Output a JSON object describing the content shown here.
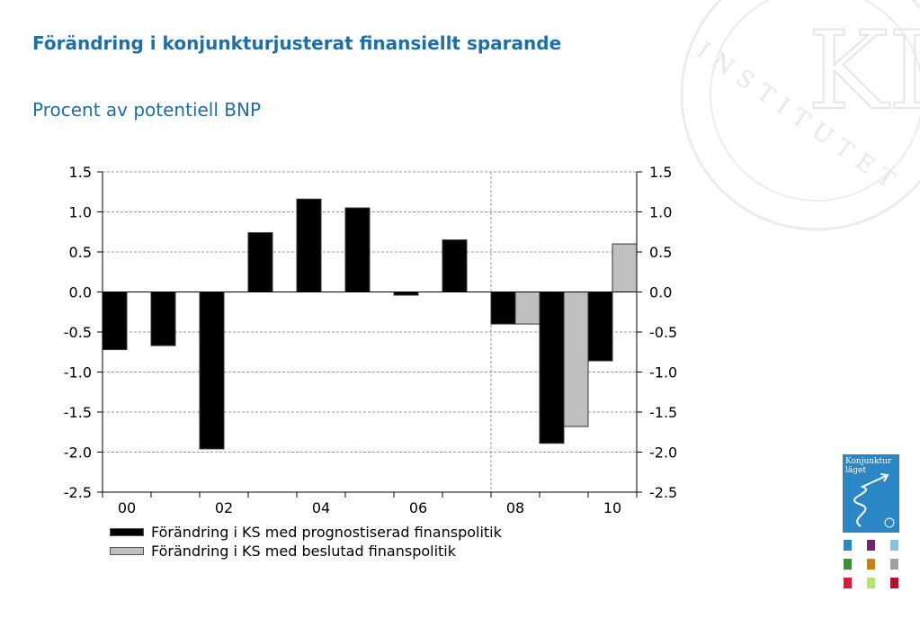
{
  "title": "Förändring i konjunkturjusterat finansiellt sparande",
  "subtitle": "Procent av potentiell BNP",
  "cover": {
    "title_line1": "Konjunktur",
    "title_line2": "läget"
  },
  "watermark": {
    "letters": "KI",
    "ring_text": "INSTITUTET"
  },
  "colors": {
    "title": "#1f6ea8",
    "series_black": "#000000",
    "series_gray": "#bfbfbf",
    "grid": "#9a9a9a"
  },
  "chart_data": {
    "type": "bar",
    "title": "Förändring i konjunkturjusterat finansiellt sparande",
    "subtitle": "Procent av potentiell BNP",
    "xlabel": "",
    "ylabel": "",
    "ylim": [
      -2.5,
      1.5
    ],
    "yticks": [
      "1.5",
      "1.0",
      "0.5",
      "0.0",
      "-0.5",
      "-1.0",
      "-1.5",
      "-2.0",
      "-2.5"
    ],
    "x_tick_labels": [
      "00",
      "02",
      "04",
      "06",
      "08",
      "10"
    ],
    "categories": [
      "2000",
      "2001",
      "2002",
      "2003",
      "2004",
      "2005",
      "2006",
      "2007",
      "2008",
      "2009",
      "2010"
    ],
    "grid": true,
    "legend_position": "bottom",
    "series": [
      {
        "name": "Förändring i KS med prognostiserad finanspolitik",
        "color": "#000000",
        "values": [
          -0.72,
          -0.67,
          -1.96,
          0.74,
          1.16,
          1.05,
          -0.04,
          0.65,
          -0.4,
          -1.89,
          -0.86
        ]
      },
      {
        "name": "Förändring i KS med beslutad finanspolitik",
        "color": "#bfbfbf",
        "values": [
          null,
          null,
          null,
          null,
          null,
          null,
          null,
          null,
          -0.4,
          -1.68,
          0.6
        ]
      }
    ]
  }
}
